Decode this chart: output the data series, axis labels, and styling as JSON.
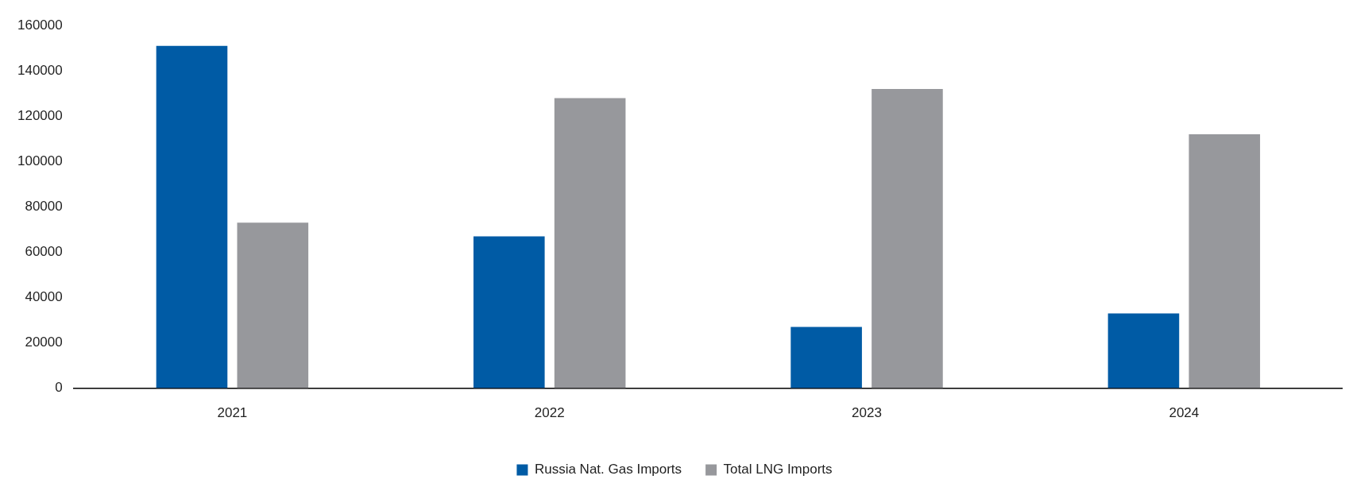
{
  "chart_data": {
    "type": "bar",
    "categories": [
      "2021",
      "2022",
      "2023",
      "2024"
    ],
    "series": [
      {
        "name": "Russia Nat. Gas Imports",
        "color": "#005ba5",
        "values": [
          151000,
          67000,
          27000,
          33000
        ]
      },
      {
        "name": "Total LNG Imports",
        "color": "#97989c",
        "values": [
          73000,
          128000,
          132000,
          112000
        ]
      }
    ],
    "ylim": [
      0,
      160000
    ],
    "yticks": [
      0,
      20000,
      40000,
      60000,
      80000,
      100000,
      120000,
      140000,
      160000
    ],
    "grid": false,
    "legend": "bottom"
  }
}
